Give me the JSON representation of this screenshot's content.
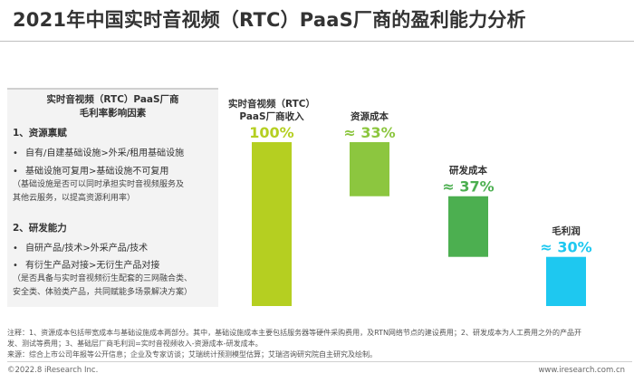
{
  "title": "2021年中国实时音视频（RTC）PaaS厂商的盈利能力分析",
  "panel": {
    "title_line1": "实时音视频（RTC）PaaS厂商",
    "title_line2": "毛利率影响因素",
    "section1": {
      "title": "1、资源禀赋",
      "bullets": [
        "自有/自建基础设施>外采/租用基础设施",
        "基础设施可复用>基础设施不可复用"
      ],
      "note_line1": "（基础设施是否可以同时承担实时音视频服务及",
      "note_line2": "其他云服务，以提高资源利用率）"
    },
    "section2": {
      "title": "2、研发能力",
      "bullets": [
        "自研产品/技术>外采产品/技术",
        "有衍生产品对接>无衍生产品对接"
      ],
      "note_line1": "（是否具备与实时音视频衍生配套的三网融合类、",
      "note_line2": "安全类、体验类产品，共同赋能多场景解决方案）"
    },
    "bullet_mark": "•"
  },
  "chart_data": {
    "type": "bar",
    "subtype": "waterfall",
    "categories": [
      "实时音视频（RTC）PaaS厂商收入",
      "资源成本",
      "研发成本",
      "毛利润"
    ],
    "category_label_lines": [
      [
        "实时音视频（RTC）",
        "PaaS厂商收入"
      ],
      [
        "资源成本"
      ],
      [
        "研发成本"
      ],
      [
        "毛利润"
      ]
    ],
    "values": [
      100,
      33,
      37,
      30
    ],
    "value_labels": [
      "100%",
      "≈ 33%",
      "≈ 37%",
      "≈ 30%"
    ],
    "bar_ranges": [
      [
        0,
        100
      ],
      [
        67,
        100
      ],
      [
        30,
        67
      ],
      [
        0,
        30
      ]
    ],
    "unit": "%",
    "ylim": [
      0,
      100
    ],
    "colors": [
      "#b5cf21",
      "#8cc63f",
      "#4caf50",
      "#1ec8f0"
    ],
    "label_colors": [
      "#b5cf21",
      "#8cc63f",
      "#4caf50",
      "#1ec8f0"
    ],
    "grid": false,
    "legend": "none"
  },
  "footnote": {
    "line1": "注释：1、资源成本包括带宽成本与基础设施成本两部分。其中，基础设施成本主要包括服务器等硬件采购费用，及RTN网络节点的建设费用；2、研发成本为人工费用之外的产品开",
    "line2": "发、测试等费用；3、基础层厂商毛利润=实时音视频收入-资源成本-研发成本。",
    "line3": "来源：综合上市公司年报等公开信息；企业及专家访谈；艾瑞统计预测模型估算；艾瑞咨询研究院自主研究及绘制。"
  },
  "footer": {
    "left": "©2022.8 iResearch Inc.",
    "right": "www.iresearch.com.cn"
  }
}
